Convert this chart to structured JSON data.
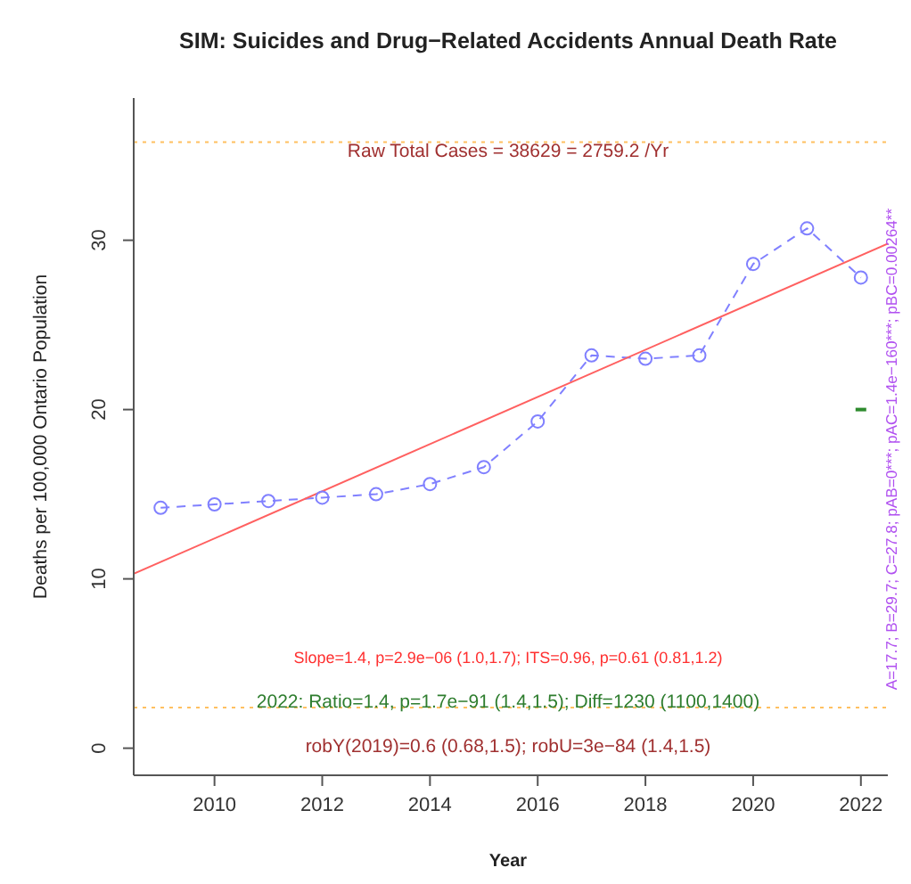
{
  "chart_data": {
    "type": "line",
    "title": "SIM: Suicides and Drug−Related Accidents Annual Death Rate",
    "xlabel": "Year",
    "ylabel": "Deaths per 100,000 Ontario Population",
    "series": [
      {
        "color": "#8080ff",
        "marker": "circle",
        "line_style": "dashed",
        "x": [
          2009,
          2010,
          2011,
          2012,
          2013,
          2014,
          2015,
          2016,
          2017,
          2018,
          2019,
          2020,
          2021,
          2022
        ],
        "values": [
          14.2,
          14.4,
          14.6,
          14.8,
          15.0,
          15.6,
          16.6,
          19.3,
          23.2,
          23.0,
          23.2,
          28.6,
          30.7,
          27.8
        ]
      },
      {
        "color": "#ff6060",
        "marker": "none",
        "line_style": "solid",
        "x": [
          2008.5,
          2022.5
        ],
        "values": [
          10.3,
          29.8
        ]
      },
      {
        "type": "scatter",
        "color": "#2e8b2e",
        "marker": "square",
        "x": [
          2022
        ],
        "values": [
          20
        ]
      }
    ],
    "xlim": [
      2008.5,
      2022.5
    ],
    "xticks": [
      2010,
      2012,
      2014,
      2016,
      2018,
      2020,
      2022
    ],
    "ylim": [
      -1.6,
      38.4
    ],
    "yticks": [
      0,
      10,
      20,
      30
    ],
    "ref_lines": [
      {
        "axis": "y",
        "value": 35.8,
        "color": "#ffc060",
        "line_style": "dotted"
      },
      {
        "axis": "y",
        "value": 2.4,
        "color": "#ffc060",
        "line_style": "dotted"
      }
    ],
    "grid": false,
    "annotations": [
      "Raw Total Cases = 38629 = 2759.2 /Yr",
      "Slope=1.4, p=2.9e−06 (1.0,1.7);  ITS=0.96, p=0.61 (0.81,1.2)",
      "2022:  Ratio=1.4, p=1.7e−91 (1.4,1.5);  Diff=1230 (1100,1400)",
      "robY(2019)=0.6 (0.68,1.5); robU=3e−84 (1.4,1.5)",
      "A=17.7; B=29.7; C=27.8; pAB=0***; pAC=1.4e−160***; pBC=0.00264**"
    ]
  }
}
